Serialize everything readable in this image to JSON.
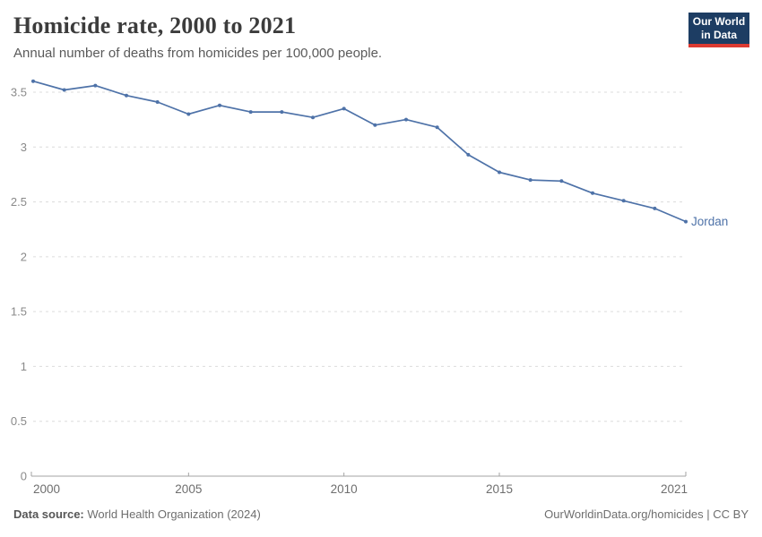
{
  "header": {
    "title": "Homicide rate, 2000 to 2021",
    "subtitle": "Annual number of deaths from homicides per 100,000 people.",
    "logo": {
      "line1": "Our World",
      "line2": "in Data"
    }
  },
  "chart_data": {
    "type": "line",
    "title": "Homicide rate, 2000 to 2021",
    "xlabel": "",
    "ylabel": "Annual deaths from homicides per 100,000 people",
    "x": [
      2000,
      2001,
      2002,
      2003,
      2004,
      2005,
      2006,
      2007,
      2008,
      2009,
      2010,
      2011,
      2012,
      2013,
      2014,
      2015,
      2016,
      2017,
      2018,
      2019,
      2020,
      2021
    ],
    "series": [
      {
        "name": "Jordan",
        "color": "#4e72a8",
        "values": [
          3.6,
          3.52,
          3.56,
          3.47,
          3.41,
          3.3,
          3.38,
          3.32,
          3.32,
          3.27,
          3.35,
          3.2,
          3.25,
          3.18,
          2.93,
          2.77,
          2.7,
          2.69,
          2.58,
          2.51,
          2.44,
          2.32
        ]
      }
    ],
    "end_label": "Jordan",
    "ylim": [
      0,
      3.5
    ],
    "yticks": [
      0,
      0.5,
      1,
      1.5,
      2,
      2.5,
      3,
      3.5
    ],
    "xticks": [
      2000,
      2005,
      2010,
      2015,
      2021
    ],
    "grid": "horizontal-dashed",
    "legend_position": "end-of-line",
    "colors": {
      "line": "#4e72a8",
      "grid": "#dcdcdc",
      "axis": "#a3a3a3",
      "y_tick_label": "#8a8a8a",
      "x_tick_label": "#6e6e6e"
    }
  },
  "footer": {
    "source_label": "Data source:",
    "source_text": " World Health Organization (2024)",
    "credit": "OurWorldinData.org/homicides | CC BY"
  }
}
